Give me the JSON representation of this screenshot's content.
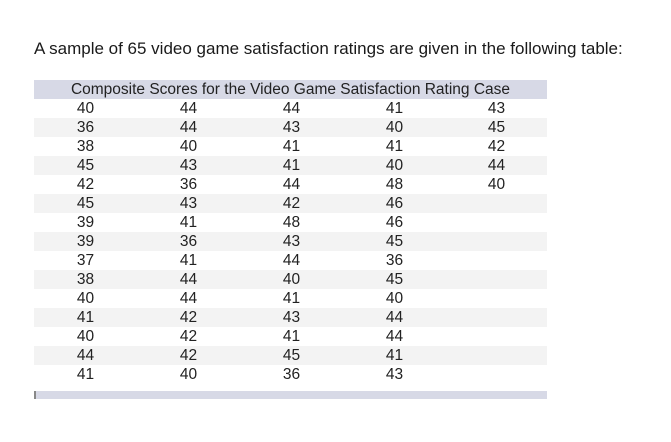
{
  "intro_text": "A sample of 65 video game satisfaction ratings are given in the following table:",
  "table": {
    "caption": "Composite Scores for the Video Game Satisfaction Rating Case",
    "rows": [
      [
        "40",
        "44",
        "44",
        "41",
        "43"
      ],
      [
        "36",
        "44",
        "43",
        "40",
        "45"
      ],
      [
        "38",
        "40",
        "41",
        "41",
        "42"
      ],
      [
        "45",
        "43",
        "41",
        "40",
        "44"
      ],
      [
        "42",
        "36",
        "44",
        "48",
        "40"
      ],
      [
        "45",
        "43",
        "42",
        "46",
        ""
      ],
      [
        "39",
        "41",
        "48",
        "46",
        ""
      ],
      [
        "39",
        "36",
        "43",
        "45",
        ""
      ],
      [
        "37",
        "41",
        "44",
        "36",
        ""
      ],
      [
        "38",
        "44",
        "40",
        "45",
        ""
      ],
      [
        "40",
        "44",
        "41",
        "40",
        ""
      ],
      [
        "41",
        "42",
        "43",
        "44",
        ""
      ],
      [
        "40",
        "42",
        "41",
        "44",
        ""
      ],
      [
        "44",
        "42",
        "45",
        "41",
        ""
      ],
      [
        "41",
        "40",
        "36",
        "43",
        ""
      ]
    ]
  }
}
